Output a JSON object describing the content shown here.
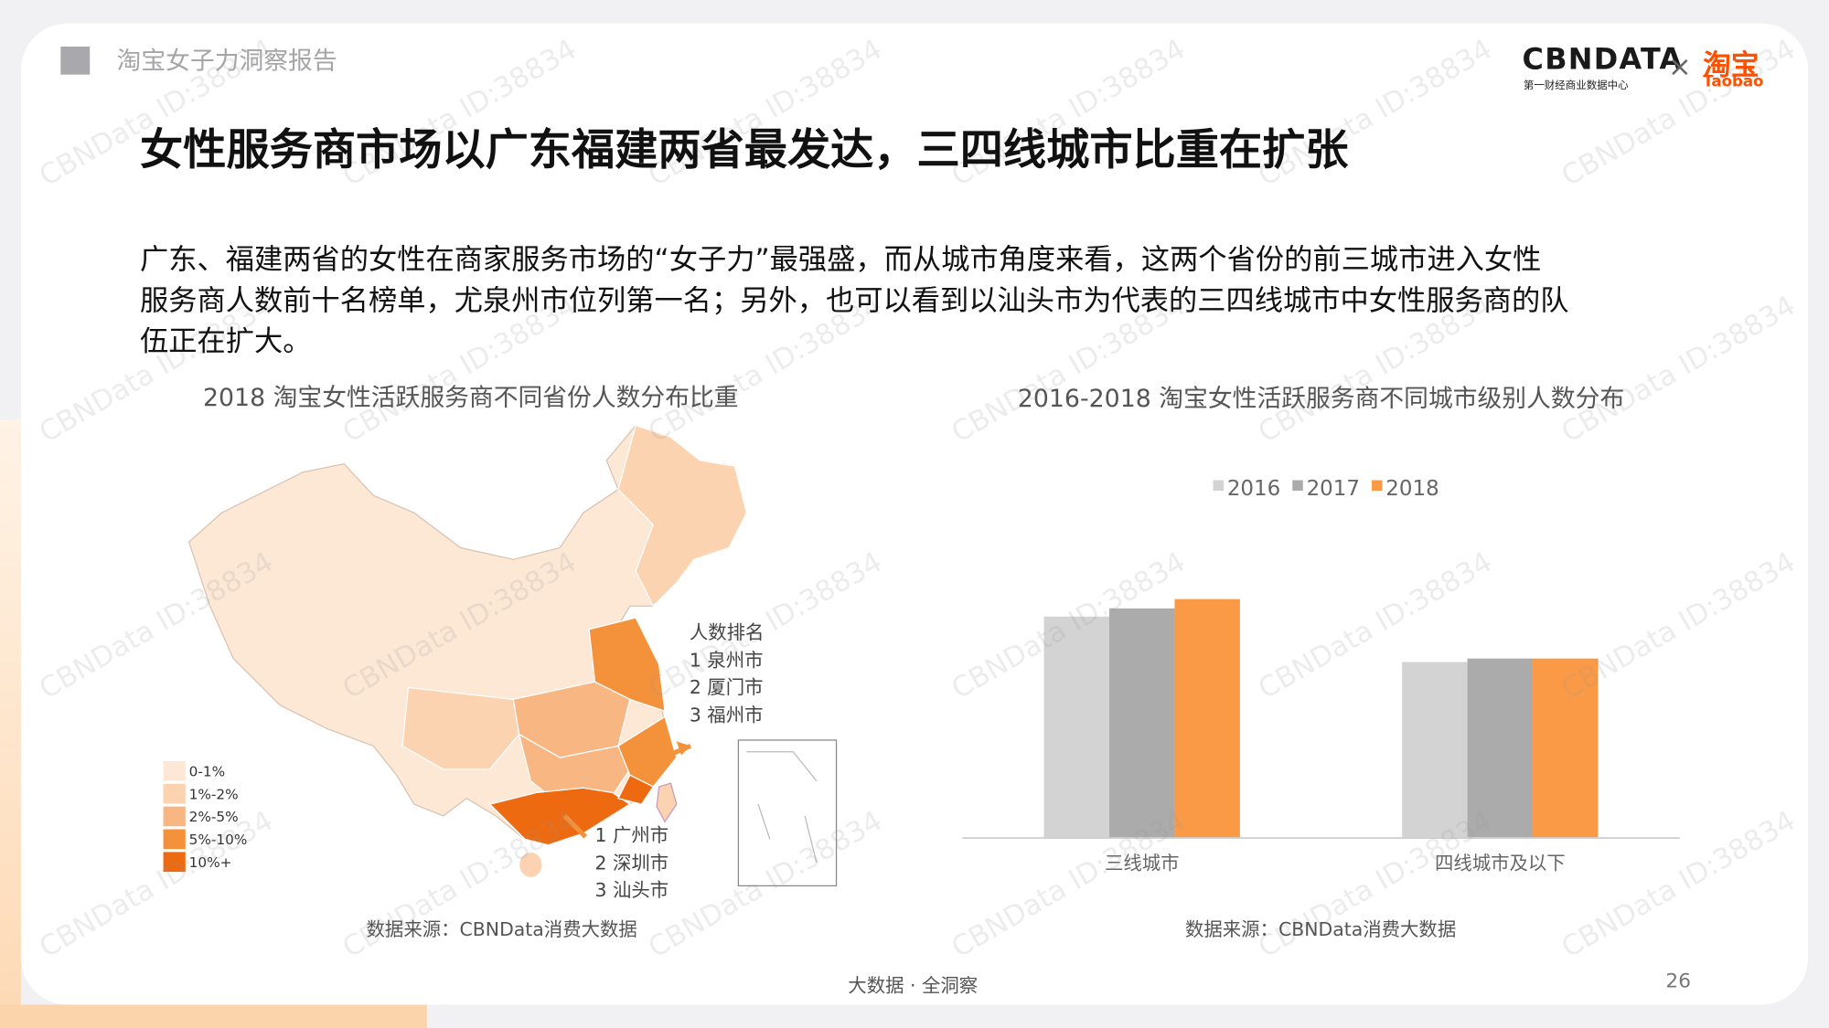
{
  "header": {
    "report": "淘宝女子力洞察报告",
    "logo": "CBNDATA",
    "logo_sub": "第一财经商业数据中心",
    "cross": "×",
    "partner": "淘宝",
    "partner_en": "Taobao"
  },
  "heading": "女性服务商市场以广东福建两省最发达，三四线城市比重在扩张",
  "paragraph": [
    "广东、福建两省的女性在商家服务市场的“女子力”最强盛，而从城市角度来看，这两个省份的前三城市进入女性",
    "服务商人数前十名榜单，尤泉州市位列第一名；另外，也可以看到以汕头市为代表的三四线城市中女性服务商的队",
    "伍正在扩大。"
  ],
  "map": {
    "title": "2018 淘宝女性活跃服务商不同省份人数分布比重",
    "legend": [
      {
        "label": "0-1%",
        "color": "#fde8d6"
      },
      {
        "label": "1%-2%",
        "color": "#fbd3b0"
      },
      {
        "label": "2%-5%",
        "color": "#f8b682"
      },
      {
        "label": "5%-10%",
        "color": "#f4923c"
      },
      {
        "label": "10%+",
        "color": "#ee6a10"
      }
    ],
    "rank_title": "人数排名",
    "fujian_ranks": [
      "1  泉州市",
      "2  厦门市",
      "3  福州市"
    ],
    "guangdong_ranks": [
      "1  广州市",
      "2  深圳市",
      "3  汕头市"
    ],
    "source": "数据来源：CBNData消费大数据"
  },
  "chart_data": {
    "type": "bar",
    "title": "2016-2018 淘宝女性活跃服务商不同城市级别人数分布",
    "categories": [
      "三线城市",
      "四线城市及以下"
    ],
    "series": [
      {
        "name": "2016",
        "color": "#d3d3d3",
        "values": [
          190,
          151
        ]
      },
      {
        "name": "2017",
        "color": "#ababab",
        "values": [
          197,
          154
        ]
      },
      {
        "name": "2018",
        "color": "#fa9a46",
        "values": [
          205,
          154
        ]
      }
    ],
    "ylim": [
      0,
      229
    ],
    "source": "数据来源：CBNData消费大数据"
  },
  "footer": {
    "slogan": "大数据 · 全洞察",
    "page": "26"
  },
  "watermark": "CBNData ID:38834"
}
